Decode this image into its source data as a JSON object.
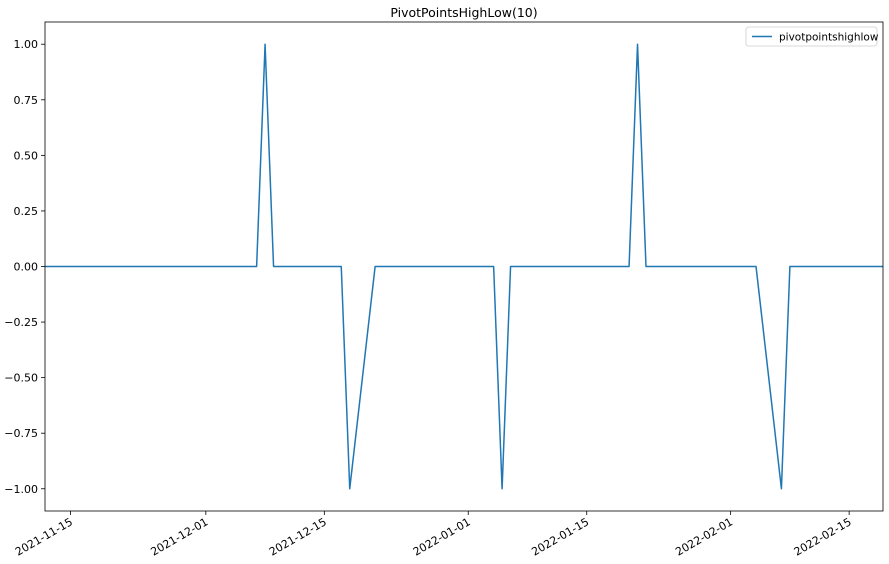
{
  "chart_data": {
    "type": "line",
    "title": "PivotPointsHighLow(10)",
    "xlabel": "",
    "ylabel": "",
    "x_type": "date",
    "xlim": [
      "2021-11-12",
      "2022-02-19"
    ],
    "ylim": [
      -1.1,
      1.1
    ],
    "grid": false,
    "legend_position": "top-right",
    "x_ticks": [
      "2021-11-15",
      "2021-12-01",
      "2021-12-15",
      "2022-01-01",
      "2022-01-15",
      "2022-02-01",
      "2022-02-15"
    ],
    "y_ticks": [
      {
        "value": 1.0,
        "label": "1.00"
      },
      {
        "value": 0.75,
        "label": "0.75"
      },
      {
        "value": 0.5,
        "label": "0.50"
      },
      {
        "value": 0.25,
        "label": "0.25"
      },
      {
        "value": 0.0,
        "label": "0.00"
      },
      {
        "value": -0.25,
        "label": "−0.25"
      },
      {
        "value": -0.5,
        "label": "−0.50"
      },
      {
        "value": -0.75,
        "label": "−0.75"
      },
      {
        "value": -1.0,
        "label": "−1.00"
      }
    ],
    "series": [
      {
        "name": "pivotpointshighlow",
        "color": "#1f77b4",
        "x": [
          "2021-11-12",
          "2021-12-07",
          "2021-12-08",
          "2021-12-09",
          "2021-12-17",
          "2021-12-18",
          "2021-12-21",
          "2022-01-04",
          "2022-01-05",
          "2022-01-06",
          "2022-01-20",
          "2022-01-21",
          "2022-01-22",
          "2022-02-04",
          "2022-02-07",
          "2022-02-08",
          "2022-02-19"
        ],
        "y": [
          0,
          0,
          1,
          0,
          0,
          -1,
          0,
          0,
          -1,
          0,
          0,
          1,
          0,
          0,
          -1,
          0,
          0
        ]
      }
    ]
  }
}
